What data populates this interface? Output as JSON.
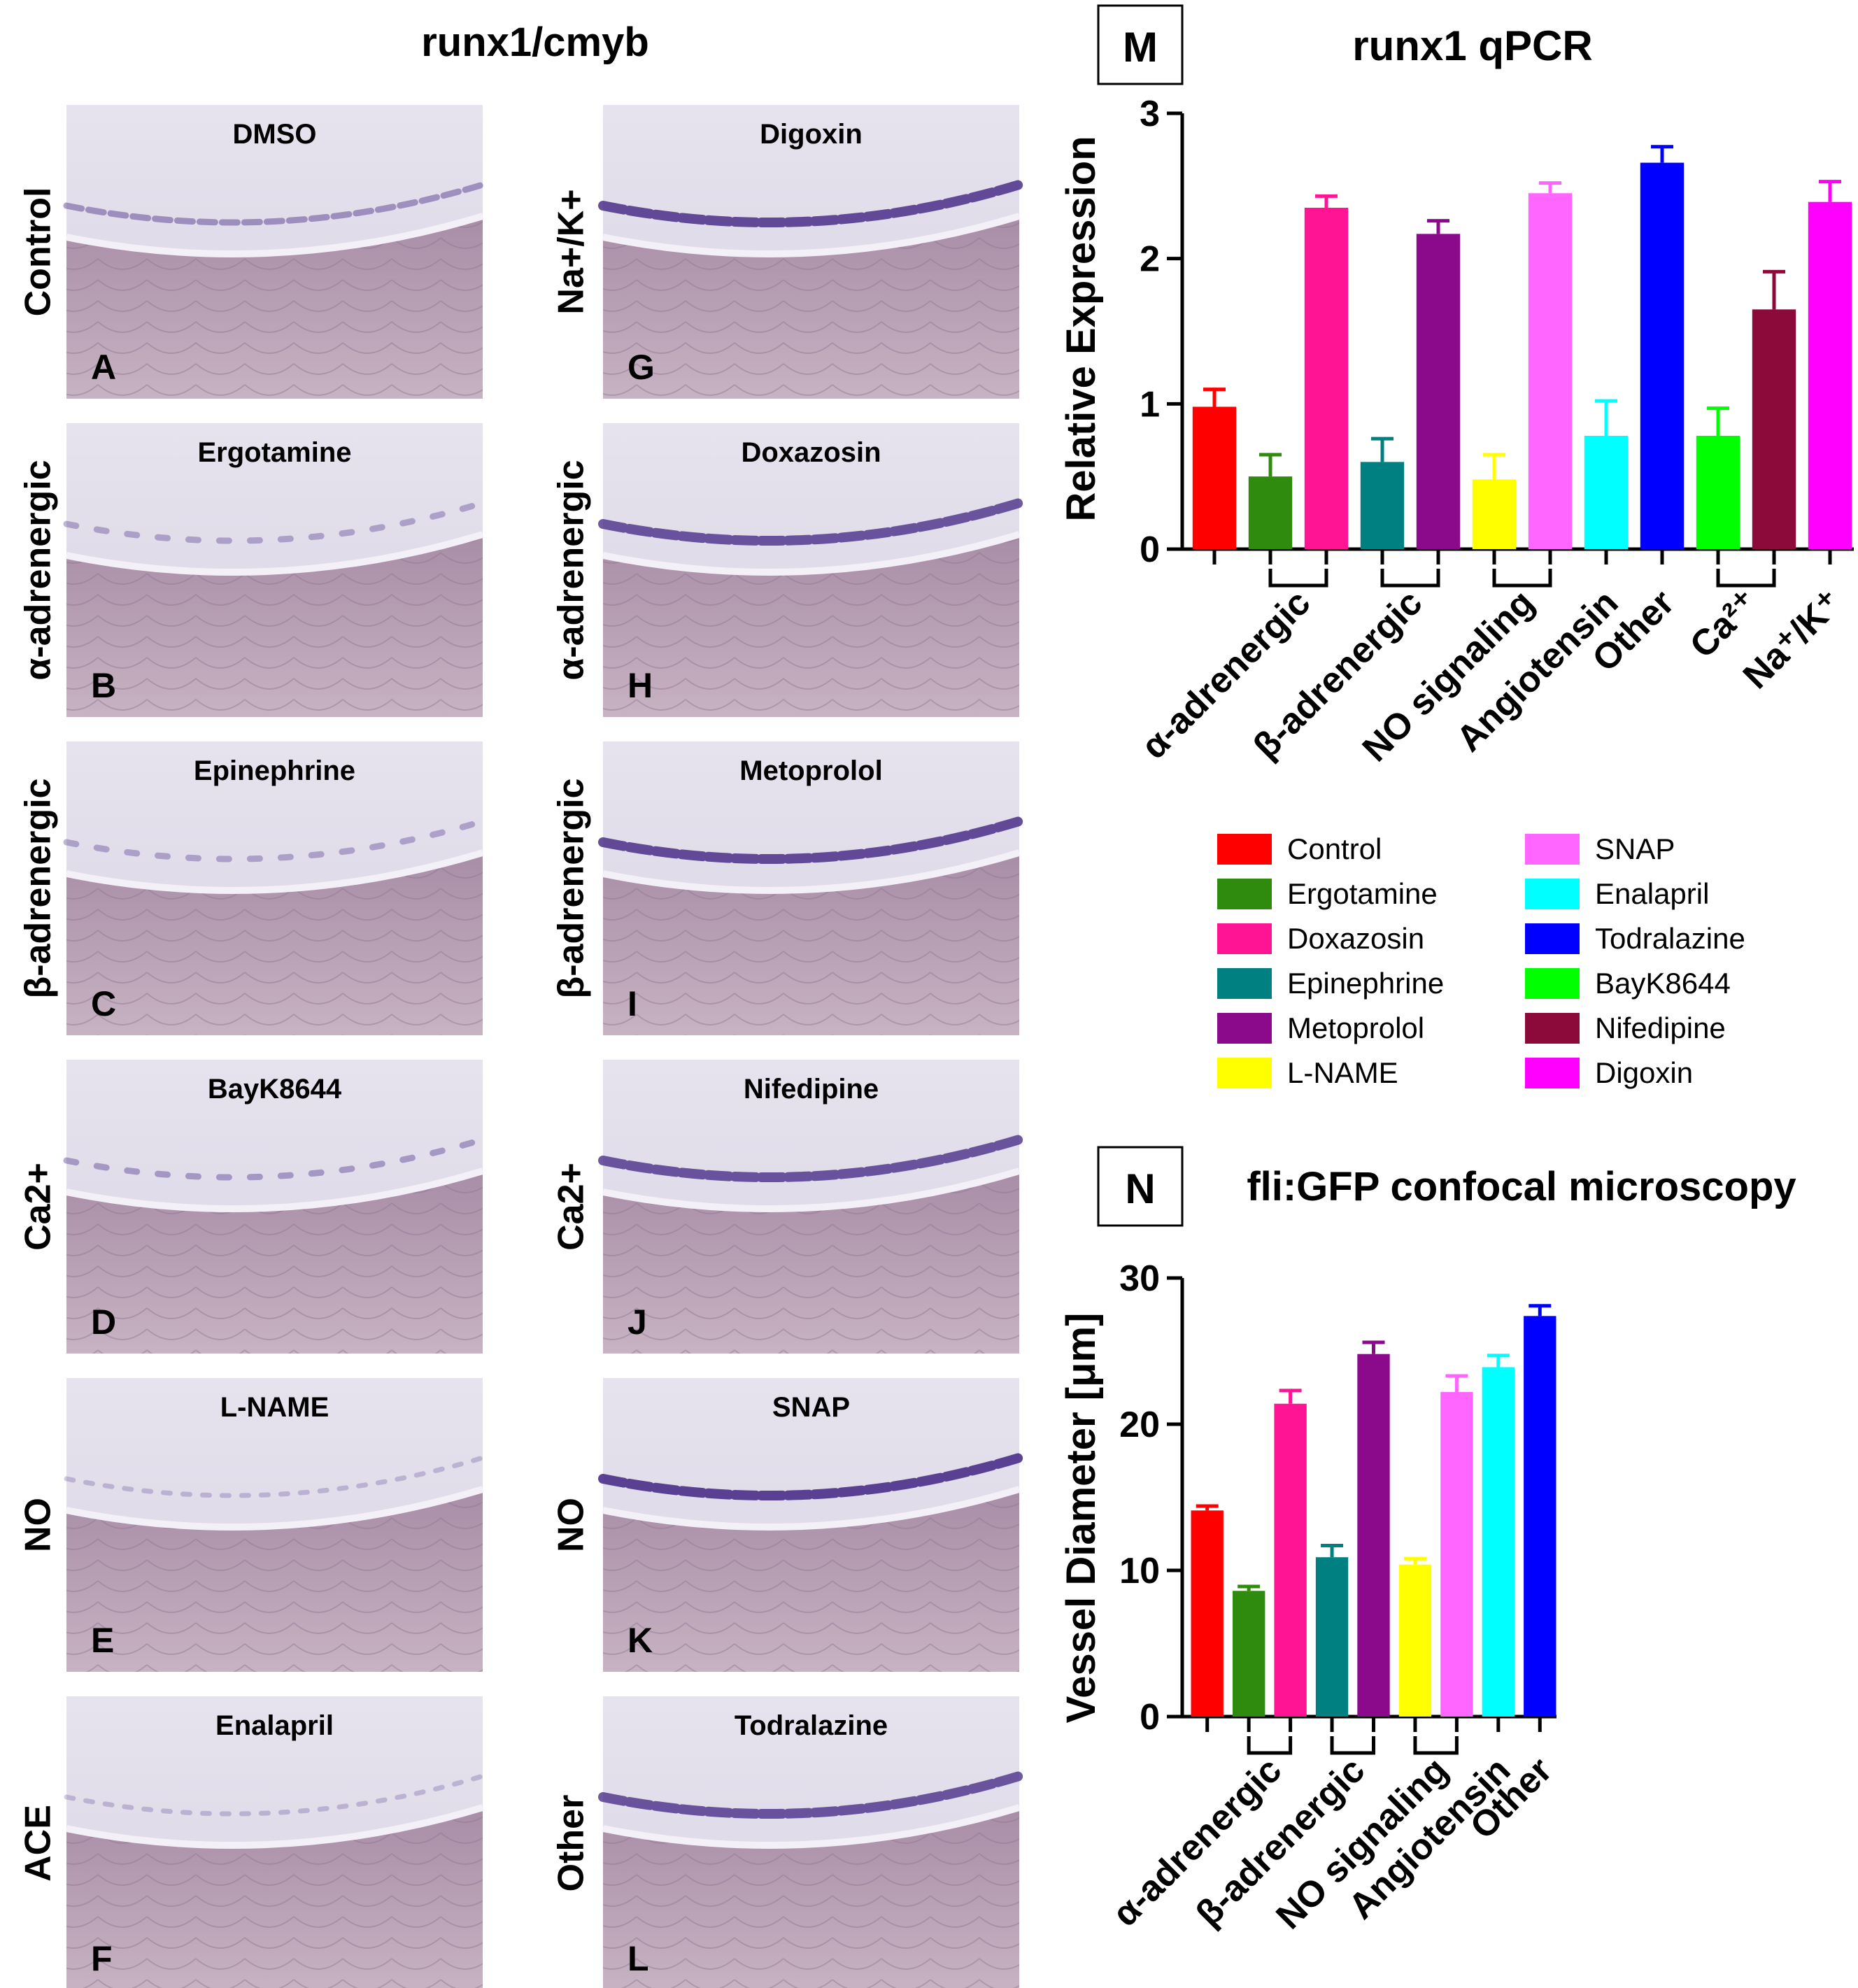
{
  "panel_figure": {
    "title": "runx1/cmyb",
    "panels": [
      {
        "letter": "A",
        "drug": "DMSO",
        "row_label": "Control",
        "intensity": 0.45,
        "pattern": "dashed"
      },
      {
        "letter": "B",
        "drug": "Ergotamine",
        "row_label": "α-adrenergic",
        "intensity": 0.35,
        "pattern": "dots"
      },
      {
        "letter": "C",
        "drug": "Epinephrine",
        "row_label": "β-adrenergic",
        "intensity": 0.35,
        "pattern": "dots"
      },
      {
        "letter": "D",
        "drug": "BayK8644",
        "row_label": "Ca2+",
        "intensity": 0.4,
        "pattern": "dots"
      },
      {
        "letter": "E",
        "drug": "L-NAME",
        "row_label": "NO",
        "intensity": 0.25,
        "pattern": "faint"
      },
      {
        "letter": "F",
        "drug": "Enalapril",
        "row_label": "ACE",
        "intensity": 0.25,
        "pattern": "faint"
      },
      {
        "letter": "G",
        "drug": "Digoxin",
        "row_label": "Na+/K+",
        "intensity": 0.85,
        "pattern": "strong"
      },
      {
        "letter": "H",
        "drug": "Doxazosin",
        "row_label": "α-adrenergic",
        "intensity": 0.8,
        "pattern": "strong"
      },
      {
        "letter": "I",
        "drug": "Metoprolol",
        "row_label": "β-adrenergic",
        "intensity": 0.85,
        "pattern": "strong"
      },
      {
        "letter": "J",
        "drug": "Nifedipine",
        "row_label": "Ca2+",
        "intensity": 0.8,
        "pattern": "strong"
      },
      {
        "letter": "K",
        "drug": "SNAP",
        "row_label": "NO",
        "intensity": 0.9,
        "pattern": "strong"
      },
      {
        "letter": "L",
        "drug": "Todralazine",
        "row_label": "Other",
        "intensity": 0.8,
        "pattern": "strong"
      }
    ]
  },
  "legend": {
    "entries": [
      {
        "name": "Control",
        "color": "#ff0000"
      },
      {
        "name": "Ergotamine",
        "color": "#2e8b0e"
      },
      {
        "name": "Doxazosin",
        "color": "#ff1493"
      },
      {
        "name": "Epinephrine",
        "color": "#008080"
      },
      {
        "name": "Metoprolol",
        "color": "#8b0a8b"
      },
      {
        "name": "L-NAME",
        "color": "#ffff00"
      },
      {
        "name": "SNAP",
        "color": "#ff66ff"
      },
      {
        "name": "Enalapril",
        "color": "#00ffff"
      },
      {
        "name": "Todralazine",
        "color": "#0000ff"
      },
      {
        "name": "BayK8644",
        "color": "#00ff00"
      },
      {
        "name": "Nifedipine",
        "color": "#8b0a3a"
      },
      {
        "name": "Digoxin",
        "color": "#ff00ff"
      }
    ]
  },
  "chart_data": [
    {
      "type": "bar",
      "panel_letter": "M",
      "title": "runx1 qPCR",
      "ylabel": "Relative Expression",
      "ylim": [
        0,
        3
      ],
      "yticks": [
        "0",
        "1",
        "2",
        "3"
      ],
      "categories": [
        "Control",
        "Ergotamine",
        "Doxazosin",
        "Epinephrine",
        "Metoprolol",
        "L-NAME",
        "SNAP",
        "Enalapril",
        "Todralazine",
        "BayK8644",
        "Nifedipine",
        "Digoxin"
      ],
      "values": [
        0.98,
        0.5,
        2.35,
        0.6,
        2.17,
        0.48,
        2.45,
        0.78,
        2.66,
        0.78,
        1.65,
        2.39
      ],
      "errors": [
        0.12,
        0.15,
        0.08,
        0.16,
        0.09,
        0.17,
        0.07,
        0.24,
        0.11,
        0.19,
        0.26,
        0.14
      ],
      "colors": [
        "#ff0000",
        "#2e8b0e",
        "#ff1493",
        "#008080",
        "#8b0a8b",
        "#ffff00",
        "#ff66ff",
        "#00ffff",
        "#0000ff",
        "#00ff00",
        "#8b0a3a",
        "#ff00ff"
      ],
      "groups": [
        {
          "label": "α-adrenergic",
          "from": 1,
          "to": 2,
          "bracket": true
        },
        {
          "label": "β-adrenergic",
          "from": 3,
          "to": 4,
          "bracket": true
        },
        {
          "label": "NO signaling",
          "from": 5,
          "to": 6,
          "bracket": true
        },
        {
          "label": "Angiotensin",
          "from": 7,
          "to": 7,
          "bracket": false
        },
        {
          "label": "Other",
          "from": 8,
          "to": 8,
          "bracket": false
        },
        {
          "label": "Ca²⁺",
          "from": 9,
          "to": 10,
          "bracket": true
        },
        {
          "label": "Na⁺/K⁺",
          "from": 11,
          "to": 11,
          "bracket": false
        }
      ]
    },
    {
      "type": "bar",
      "panel_letter": "N",
      "title": "fli:GFP confocal microscopy",
      "ylabel": "Vessel Diameter [μm]",
      "ylim": [
        0,
        30
      ],
      "yticks": [
        "0",
        "10",
        "20",
        "30"
      ],
      "categories": [
        "Control",
        "Ergotamine",
        "Doxazosin",
        "Epinephrine",
        "Metoprolol",
        "L-NAME",
        "SNAP",
        "Enalapril",
        "Todralazine"
      ],
      "values": [
        14.1,
        8.6,
        21.4,
        10.9,
        24.8,
        10.4,
        22.2,
        23.9,
        27.4
      ],
      "errors": [
        0.3,
        0.3,
        0.9,
        0.8,
        0.8,
        0.4,
        1.1,
        0.8,
        0.7
      ],
      "colors": [
        "#ff0000",
        "#2e8b0e",
        "#ff1493",
        "#008080",
        "#8b0a8b",
        "#ffff00",
        "#ff66ff",
        "#00ffff",
        "#0000ff"
      ],
      "groups": [
        {
          "label": "α-adrenergic",
          "from": 1,
          "to": 2,
          "bracket": true
        },
        {
          "label": "β-adrenergic",
          "from": 3,
          "to": 4,
          "bracket": true
        },
        {
          "label": "NO signaling",
          "from": 5,
          "to": 6,
          "bracket": true
        },
        {
          "label": "Angiotensin",
          "from": 7,
          "to": 7,
          "bracket": false
        },
        {
          "label": "Other",
          "from": 8,
          "to": 8,
          "bracket": false
        }
      ]
    }
  ]
}
